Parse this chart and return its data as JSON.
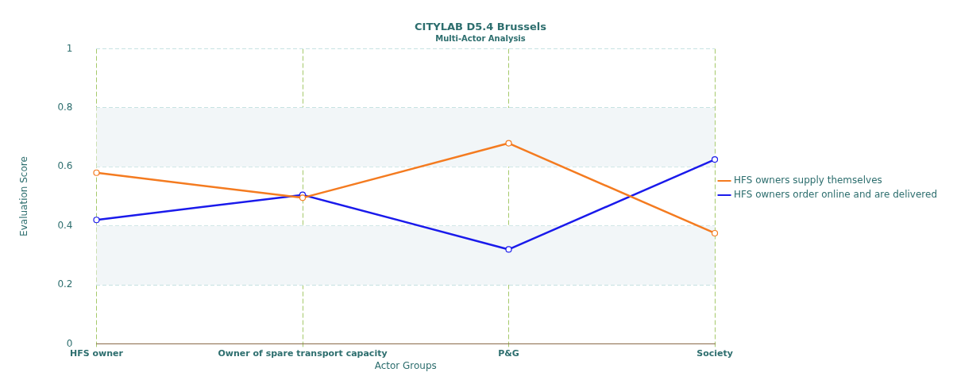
{
  "chart_data": {
    "type": "line",
    "title": "CITYLAB D5.4 Brussels",
    "subtitle": "Multi-Actor Analysis",
    "xlabel": "Actor Groups",
    "ylabel": "Evaluation Score",
    "categories": [
      "HFS owner",
      "Owner of spare transport capacity",
      "P&G",
      "Society"
    ],
    "series": [
      {
        "name": "HFS owners supply themselves",
        "color": "#f47b20",
        "values": [
          0.58,
          0.495,
          0.68,
          0.375
        ]
      },
      {
        "name": "HFS owners order online and are delivered",
        "color": "#1a1aeb",
        "values": [
          0.42,
          0.505,
          0.32,
          0.625
        ]
      }
    ],
    "ylim": [
      0,
      1
    ],
    "yticks": [
      0,
      0.2,
      0.4,
      0.6,
      0.8,
      1
    ],
    "bands": [
      {
        "axis": "y",
        "from": 0.2,
        "to": 0.4,
        "color": "#f2f6f8"
      },
      {
        "axis": "y",
        "from": 0.6,
        "to": 0.8,
        "color": "#f2f6f8"
      }
    ],
    "grid": true,
    "legend": "right",
    "marker": "circle",
    "line_style": "solid"
  }
}
